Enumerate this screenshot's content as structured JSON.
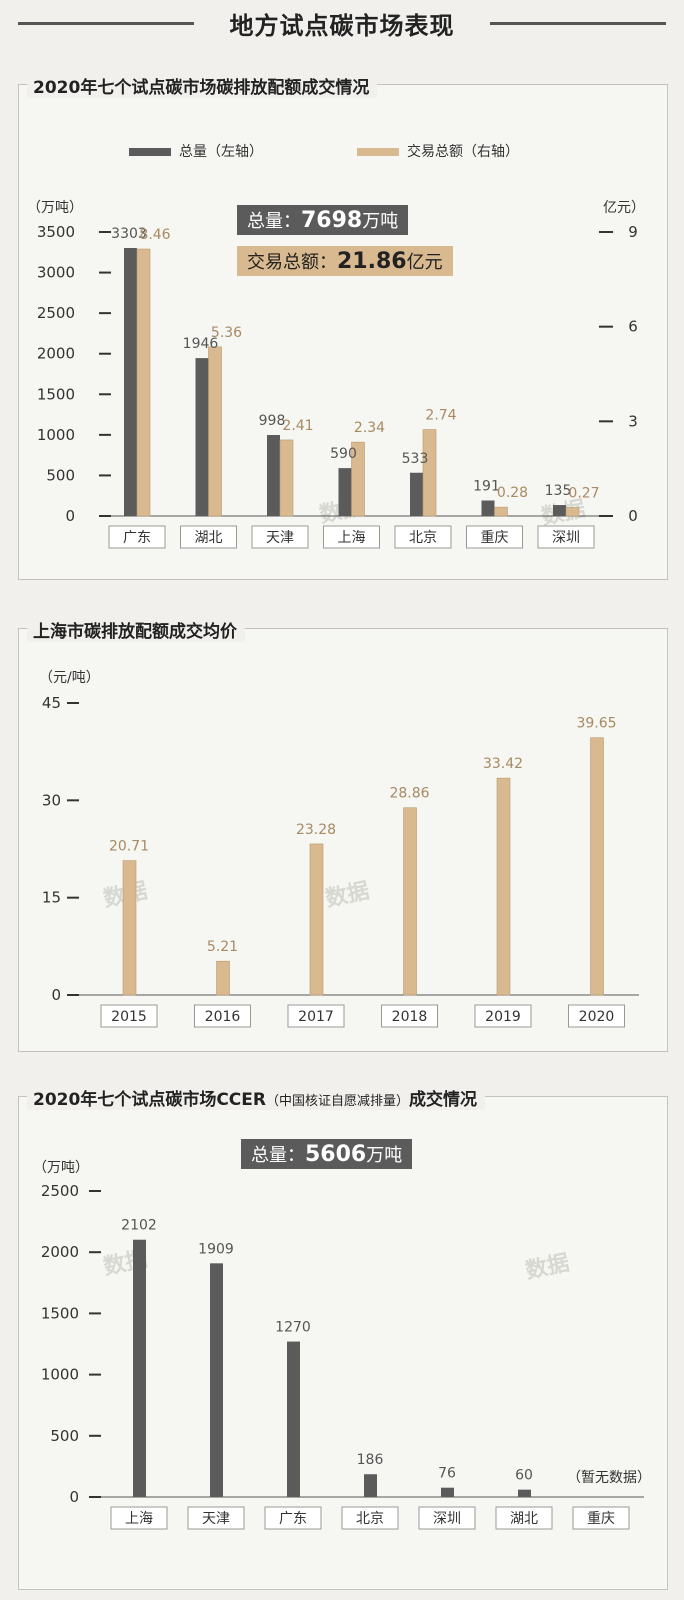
{
  "header": {
    "title": "地方试点碳市场表现"
  },
  "colors": {
    "dark": "#5b5b5b",
    "tan": "#d9b98f",
    "grid": "#bdbdb7",
    "label_tan": "#a88a63"
  },
  "watermark": "数据",
  "chart_data": [
    {
      "type": "bar",
      "title": "2020年七个试点碳市场碳排放配额成交情况",
      "categories": [
        "广东",
        "湖北",
        "天津",
        "上海",
        "北京",
        "重庆",
        "深圳"
      ],
      "series": [
        {
          "name": "总量（左轴）",
          "axis": "left",
          "values": [
            3303,
            1946,
            998,
            590,
            533,
            191,
            135
          ],
          "labels": [
            "3303",
            "1946",
            "998",
            "590",
            "533",
            "191",
            "135"
          ]
        },
        {
          "name": "交易总额（右轴）",
          "axis": "right",
          "values": [
            8.46,
            5.36,
            2.41,
            2.34,
            2.74,
            0.28,
            0.27
          ],
          "labels": [
            "8.46",
            "5.36",
            "2.41",
            "2.34",
            "2.74",
            "0.28",
            "0.27"
          ]
        }
      ],
      "y_left": {
        "unit": "（万吨）",
        "ylim": [
          0,
          3500
        ],
        "ticks": [
          0,
          500,
          1000,
          1500,
          2000,
          2500,
          3000,
          3500
        ],
        "tick_labels": [
          "0",
          "500",
          "1000",
          "1500",
          "2000",
          "2500",
          "3000",
          "3500"
        ]
      },
      "y_right": {
        "unit": "亿元）",
        "ylim": [
          0,
          9
        ],
        "ticks": [
          0,
          3,
          6,
          9
        ],
        "tick_labels": [
          "0",
          "3",
          "6",
          "9"
        ]
      },
      "badges": {
        "total_prefix": "总量：",
        "total_value": "7698",
        "total_unit": "万吨",
        "amount_prefix": "交易总额：",
        "amount_value": "21.86",
        "amount_unit": "亿元"
      },
      "legend_placement": "top"
    },
    {
      "type": "bar",
      "title": "上海市碳排放配额成交均价",
      "categories": [
        "2015",
        "2016",
        "2017",
        "2018",
        "2019",
        "2020"
      ],
      "values": [
        20.71,
        5.21,
        23.28,
        28.86,
        33.42,
        39.65
      ],
      "labels": [
        "20.71",
        "5.21",
        "23.28",
        "28.86",
        "33.42",
        "39.65"
      ],
      "y": {
        "unit": "（元/吨）",
        "ylim": [
          0,
          45
        ],
        "ticks": [
          0,
          15,
          30,
          45
        ],
        "tick_labels": [
          "0",
          "15",
          "30",
          "45"
        ]
      }
    },
    {
      "type": "bar",
      "title_main": "2020年七个试点碳市场CCER",
      "title_paren": "（中国核证自愿减排量）",
      "title_end": "成交情况",
      "categories": [
        "上海",
        "天津",
        "广东",
        "北京",
        "深圳",
        "湖北",
        "重庆"
      ],
      "values": [
        2102,
        1909,
        1270,
        186,
        76,
        60,
        null
      ],
      "labels": [
        "2102",
        "1909",
        "1270",
        "186",
        "76",
        "60",
        ""
      ],
      "y": {
        "unit": "（万吨）",
        "ylim": [
          0,
          2500
        ],
        "ticks": [
          0,
          500,
          1000,
          1500,
          2000,
          2500
        ],
        "tick_labels": [
          "0",
          "500",
          "1000",
          "1500",
          "2000",
          "2500"
        ]
      },
      "badges": {
        "total_prefix": "总量：",
        "total_value": "5606",
        "total_unit": "万吨"
      },
      "note": "（暂无数据）"
    }
  ]
}
